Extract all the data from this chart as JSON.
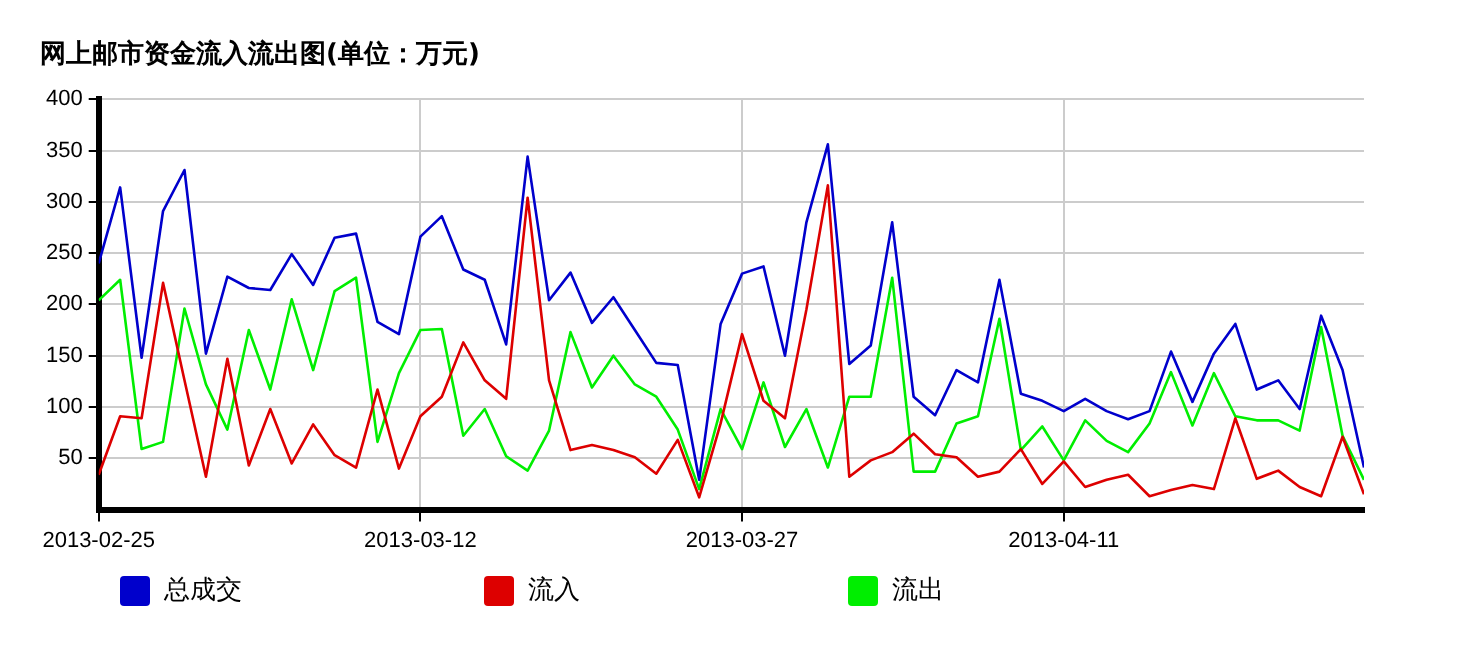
{
  "chart_data": {
    "type": "line",
    "title": "网上邮市资金流入流出图(单位：万元)",
    "x": [
      "2013-02-25",
      "2013-02-26",
      "2013-02-27",
      "2013-02-28",
      "2013-03-01",
      "2013-03-02",
      "2013-03-03",
      "2013-03-04",
      "2013-03-05",
      "2013-03-06",
      "2013-03-07",
      "2013-03-08",
      "2013-03-09",
      "2013-03-10",
      "2013-03-11",
      "2013-03-12",
      "2013-03-13",
      "2013-03-14",
      "2013-03-15",
      "2013-03-16",
      "2013-03-17",
      "2013-03-18",
      "2013-03-19",
      "2013-03-20",
      "2013-03-21",
      "2013-03-22",
      "2013-03-23",
      "2013-03-24",
      "2013-03-25",
      "2013-03-26",
      "2013-03-27",
      "2013-03-28",
      "2013-03-29",
      "2013-03-30",
      "2013-03-31",
      "2013-04-01",
      "2013-04-02",
      "2013-04-03",
      "2013-04-04",
      "2013-04-05",
      "2013-04-06",
      "2013-04-07",
      "2013-04-08",
      "2013-04-09",
      "2013-04-10",
      "2013-04-11",
      "2013-04-12",
      "2013-04-13",
      "2013-04-14",
      "2013-04-15",
      "2013-04-16",
      "2013-04-17",
      "2013-04-18",
      "2013-04-19",
      "2013-04-20",
      "2013-04-21",
      "2013-04-22",
      "2013-04-23",
      "2013-04-24",
      "2013-04-25"
    ],
    "series": [
      {
        "name": "总成交",
        "color": "#0000cc",
        "values": [
          240,
          314,
          148,
          291,
          331,
          152,
          227,
          216,
          214,
          249,
          219,
          265,
          269,
          183,
          171,
          266,
          286,
          234,
          224,
          161,
          344,
          204,
          231,
          182,
          207,
          175,
          143,
          141,
          29,
          181,
          230,
          237,
          150,
          280,
          356,
          142,
          160,
          280,
          110,
          92,
          136,
          124,
          224,
          113,
          106,
          96,
          108,
          96,
          88,
          96,
          154,
          105,
          152,
          181,
          117,
          126,
          98,
          189,
          136,
          41
        ]
      },
      {
        "name": "流入",
        "color": "#dd0000",
        "values": [
          34,
          91,
          89,
          221,
          126,
          32,
          147,
          43,
          98,
          45,
          83,
          53,
          41,
          117,
          40,
          91,
          110,
          163,
          126,
          108,
          304,
          126,
          58,
          63,
          58,
          51,
          35,
          68,
          12,
          84,
          171,
          106,
          89,
          195,
          316,
          32,
          48,
          56,
          74,
          54,
          51,
          32,
          37,
          59,
          25,
          47,
          22,
          29,
          34,
          13,
          19,
          24,
          20,
          89,
          30,
          38,
          22,
          13,
          71,
          15
        ]
      },
      {
        "name": "流出",
        "color": "#00ee00",
        "values": [
          204,
          224,
          59,
          66,
          196,
          122,
          78,
          175,
          117,
          205,
          136,
          213,
          226,
          66,
          133,
          175,
          176,
          72,
          98,
          52,
          38,
          77,
          173,
          119,
          150,
          122,
          110,
          78,
          20,
          98,
          59,
          124,
          61,
          98,
          41,
          110,
          110,
          226,
          37,
          37,
          84,
          91,
          186,
          58,
          81,
          48,
          87,
          67,
          56,
          84,
          134,
          82,
          133,
          91,
          87,
          87,
          77,
          178,
          72,
          29
        ]
      }
    ],
    "xlim": [
      "2013-02-25",
      "2013-04-25"
    ],
    "xticks": [
      "2013-02-25",
      "2013-03-12",
      "2013-03-27",
      "2013-04-11"
    ],
    "ylim": [
      0,
      400
    ],
    "yticks": [
      50,
      100,
      150,
      200,
      250,
      300,
      350,
      400
    ],
    "grid": true,
    "legend": "bottom left"
  }
}
